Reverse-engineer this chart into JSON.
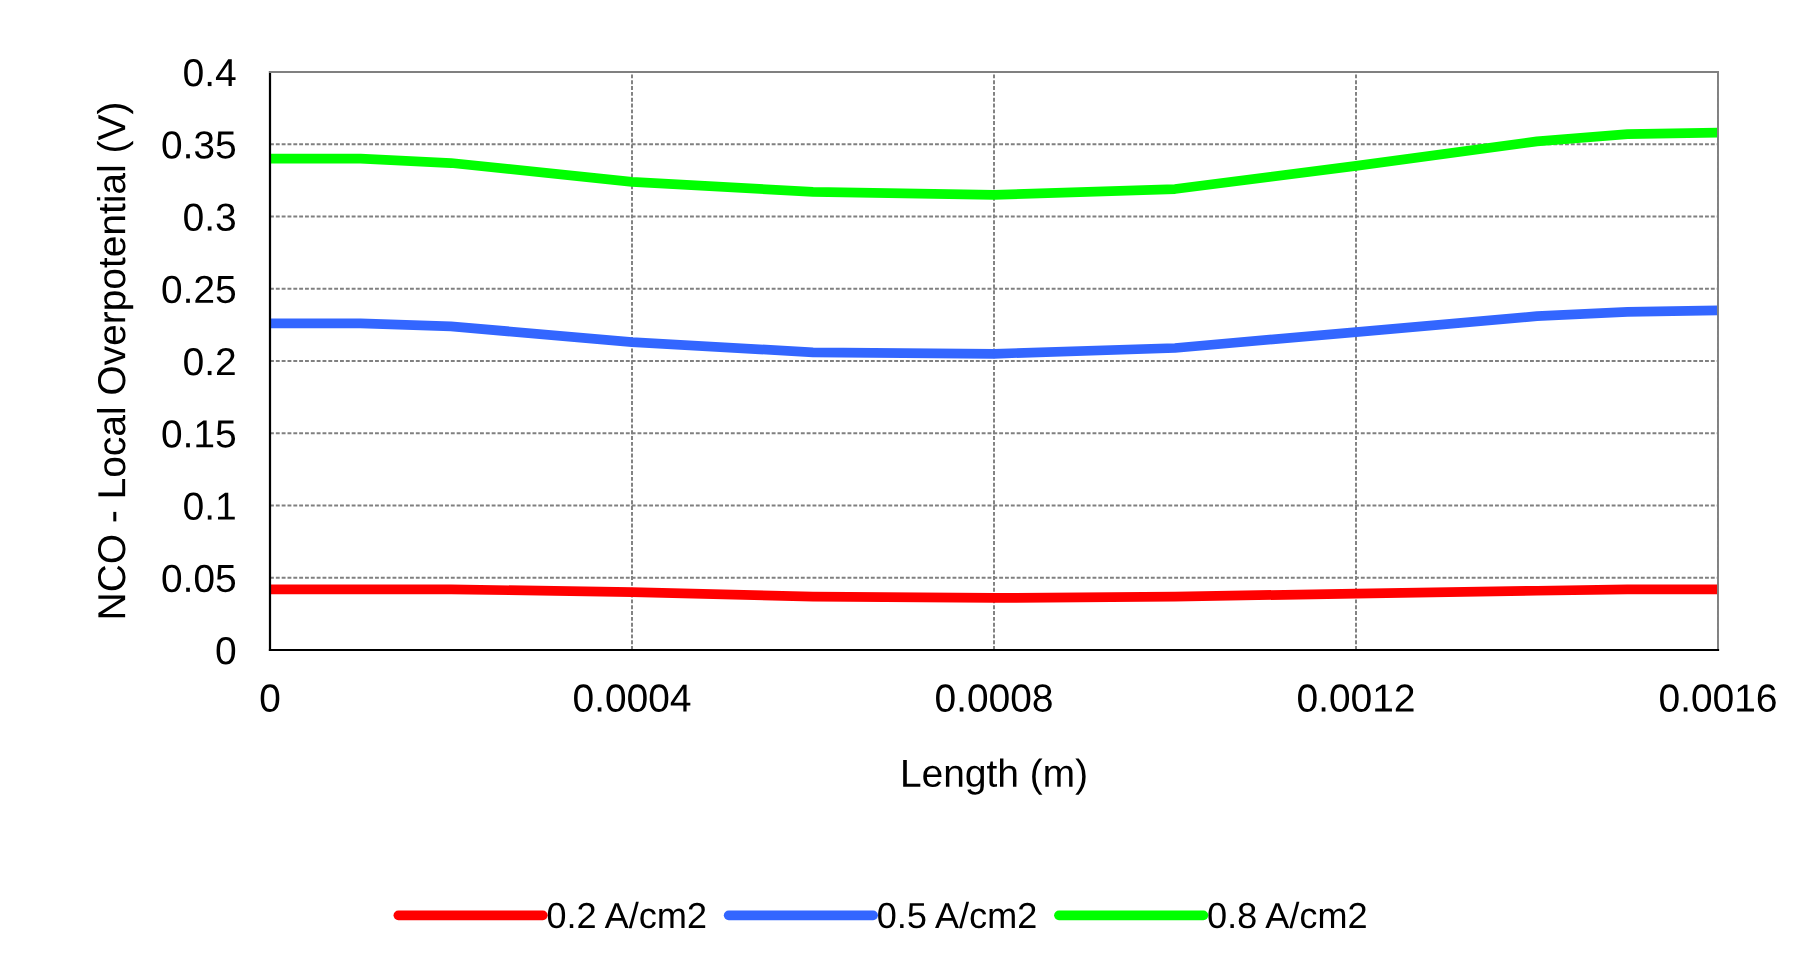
{
  "chart_data": {
    "type": "line",
    "xlabel": "Length (m)",
    "ylabel": "NCO - Local Overpotential (V)",
    "xlim": [
      0,
      0.0016
    ],
    "xticks": [
      0,
      0.0004,
      0.0008,
      0.0012,
      0.0016
    ],
    "ylim": [
      0,
      0.4
    ],
    "yticks": [
      0,
      0.05,
      0.1,
      0.15,
      0.2,
      0.25,
      0.3,
      0.35,
      0.4
    ],
    "grid": true,
    "legend": "bottom",
    "marker": "none",
    "line_style": "solid",
    "x": [
      0,
      0.0001,
      0.0002,
      0.0004,
      0.0006,
      0.0008,
      0.001,
      0.0012,
      0.0014,
      0.0015,
      0.0016
    ],
    "series": [
      {
        "name": "0.2 A/cm2",
        "color": "#ff0000",
        "values": [
          0.042,
          0.042,
          0.042,
          0.04,
          0.037,
          0.036,
          0.037,
          0.039,
          0.041,
          0.042,
          0.042
        ]
      },
      {
        "name": "0.5 A/cm2",
        "color": "#3366ff",
        "values": [
          0.226,
          0.226,
          0.224,
          0.213,
          0.206,
          0.205,
          0.209,
          0.22,
          0.231,
          0.234,
          0.235
        ]
      },
      {
        "name": "0.8 A/cm2",
        "color": "#00ff00",
        "values": [
          0.34,
          0.34,
          0.337,
          0.324,
          0.317,
          0.315,
          0.319,
          0.335,
          0.352,
          0.357,
          0.358
        ]
      }
    ]
  }
}
